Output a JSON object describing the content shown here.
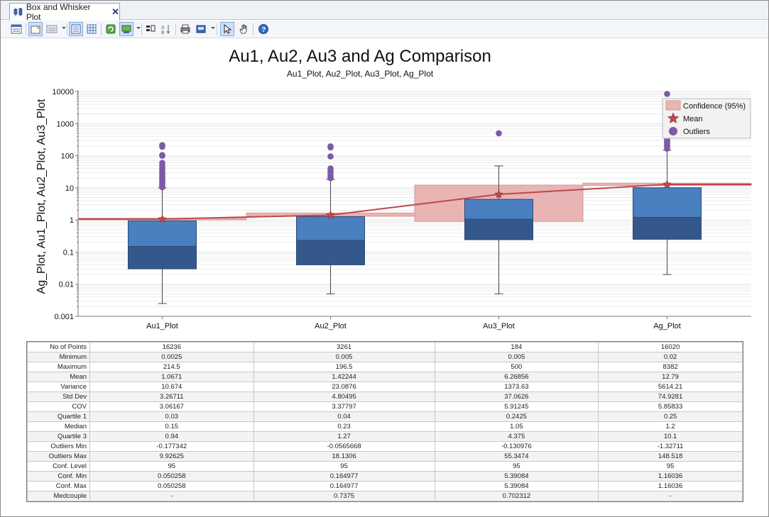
{
  "window": {
    "tab_title": "Box and Whisker Plot",
    "close_glyph": "✕"
  },
  "toolbar": {
    "icons": [
      "properties-icon",
      "edit-table-icon",
      "display-options-icon",
      "list-icon",
      "grid-icon",
      "refresh-icon",
      "export-icon",
      "sort-bar-icon",
      "sort-az-icon",
      "print-icon",
      "save-image-icon",
      "select-pointer-icon",
      "pan-hand-icon",
      "help-icon"
    ]
  },
  "chart_data": {
    "type": "box",
    "title": "Au1, Au2, Au3 and Ag Comparison",
    "subtitle": "Au1_Plot, Au2_Plot, Au3_Plot, Ag_Plot",
    "ylabel": "Ag_Plot, Au1_Plot, Au2_Plot, Au3_Plot",
    "xlabel": "",
    "yscale": "log",
    "ylim": [
      0.001,
      10000
    ],
    "ytick_labels": [
      "0.001",
      "0.01",
      "0.1",
      "1",
      "10",
      "100",
      "1000",
      "10000"
    ],
    "grid": true,
    "legend_position": "top-right",
    "legend": [
      "Confidence (95%)",
      "Mean",
      "Outliers"
    ],
    "colors": {
      "box_upper": "#4a7fc0",
      "box_lower": "#34588c",
      "confidence_fill": "#e8b4b4",
      "mean_line": "#c0474a",
      "outlier": "#7b5aa6",
      "grid": "#e4e4e4"
    },
    "categories": [
      "Au1_Plot",
      "Au2_Plot",
      "Au3_Plot",
      "Ag_Plot"
    ],
    "boxes": [
      {
        "whisker_low": 0.0025,
        "q1": 0.03,
        "median": 0.15,
        "q3": 0.94,
        "whisker_high": 9.92625,
        "mean": 1.0671,
        "conf_low": 1.0,
        "conf_high": 1.13,
        "outliers": [
          214.5,
          190,
          105,
          100,
          60,
          50,
          45,
          38,
          33,
          30,
          27,
          24,
          22,
          20,
          18,
          16,
          15,
          14,
          13,
          12,
          11,
          10.5
        ]
      },
      {
        "whisker_low": 0.005,
        "q1": 0.04,
        "median": 0.23,
        "q3": 1.27,
        "whisker_high": 18.1306,
        "mean": 1.42244,
        "conf_low": 1.3,
        "conf_high": 1.65,
        "outliers": [
          196.5,
          180,
          95,
          40,
          35,
          30,
          25,
          22,
          20
        ]
      },
      {
        "whisker_low": 0.005,
        "q1": 0.2425,
        "median": 1.05,
        "q3": 4.375,
        "whisker_high": 48,
        "mean": 6.26856,
        "conf_low": 0.9,
        "conf_high": 12.2,
        "outliers": [
          500
        ]
      },
      {
        "whisker_low": 0.02,
        "q1": 0.25,
        "median": 1.2,
        "q3": 10.1,
        "whisker_high": 148.518,
        "mean": 12.79,
        "conf_low": 11.8,
        "conf_high": 14.0,
        "outliers": [
          8382,
          600,
          500,
          450,
          400,
          350,
          320,
          300,
          280,
          260,
          240,
          220,
          200,
          180,
          165
        ]
      }
    ]
  },
  "stats_table": {
    "rows": [
      {
        "label": "No of Points",
        "values": [
          "16236",
          "3261",
          "184",
          "16020"
        ]
      },
      {
        "label": "Minimum",
        "values": [
          "0.0025",
          "0.005",
          "0.005",
          "0.02"
        ]
      },
      {
        "label": "Maximum",
        "values": [
          "214.5",
          "196.5",
          "500",
          "8382"
        ]
      },
      {
        "label": "Mean",
        "values": [
          "1.0671",
          "1.42244",
          "6.26856",
          "12.79"
        ]
      },
      {
        "label": "Variance",
        "values": [
          "10.674",
          "23.0876",
          "1373.63",
          "5614.21"
        ]
      },
      {
        "label": "Std Dev",
        "values": [
          "3.26711",
          "4.80495",
          "37.0626",
          "74.9281"
        ]
      },
      {
        "label": "COV",
        "values": [
          "3.06167",
          "3.37797",
          "5.91245",
          "5.85833"
        ]
      },
      {
        "label": "Quartile 1",
        "values": [
          "0.03",
          "0.04",
          "0.2425",
          "0.25"
        ]
      },
      {
        "label": "Median",
        "values": [
          "0.15",
          "0.23",
          "1.05",
          "1.2"
        ]
      },
      {
        "label": "Quartile 3",
        "values": [
          "0.94",
          "1.27",
          "4.375",
          "10.1"
        ]
      },
      {
        "label": "Outliers Min",
        "values": [
          "-0.177342",
          "-0.0565668",
          "-0.130976",
          "-1.32711"
        ]
      },
      {
        "label": "Outliers Max",
        "values": [
          "9.92625",
          "18.1306",
          "55.3474",
          "148.518"
        ]
      },
      {
        "label": "Conf. Level",
        "values": [
          "95",
          "95",
          "95",
          "95"
        ]
      },
      {
        "label": "Conf. Min",
        "values": [
          "0.050258",
          "0.164977",
          "5.39084",
          "1.16036"
        ]
      },
      {
        "label": "Conf. Max",
        "values": [
          "0.050258",
          "0.164977",
          "5.39084",
          "1.16036"
        ]
      },
      {
        "label": "Medcouple",
        "values": [
          "-",
          "0.7375",
          "0.702312",
          "-"
        ]
      }
    ]
  }
}
